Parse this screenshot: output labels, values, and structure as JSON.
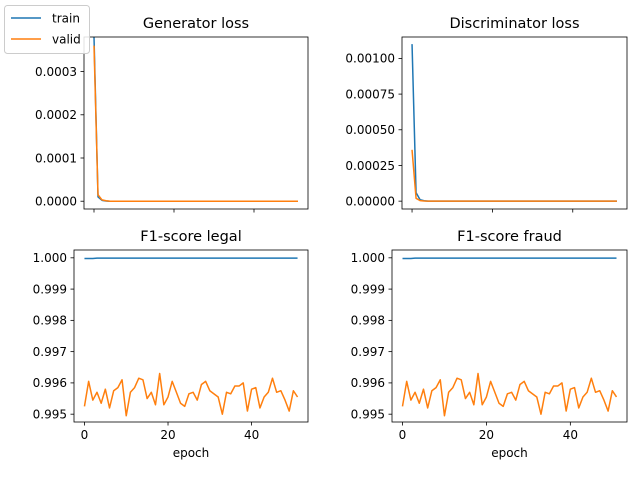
{
  "figure": {
    "legend": {
      "placement": "top-left",
      "entries": [
        {
          "label": "train",
          "color": "#1f77b4"
        },
        {
          "label": "valid",
          "color": "#ff7f0e"
        }
      ]
    }
  },
  "chart_data": [
    {
      "type": "line",
      "title": "Generator loss",
      "xlabel": "",
      "ylabel": "",
      "xlim": [
        -2.5,
        53.5
      ],
      "ylim": [
        -1.8e-05,
        0.00038
      ],
      "xticks": [
        0,
        20,
        40
      ],
      "show_x_tick_labels": false,
      "yticks": [
        0.0,
        0.0001,
        0.0002,
        0.0003
      ],
      "ytick_labels": [
        "0.0000",
        "0.0001",
        "0.0002",
        "0.0003"
      ],
      "grid": false,
      "series": [
        {
          "name": "train",
          "color": "#1f77b4",
          "x": [
            0,
            1,
            2,
            3,
            4,
            5,
            6,
            7,
            8,
            9,
            10,
            11,
            12,
            13,
            14,
            15,
            16,
            17,
            18,
            19,
            20,
            21,
            22,
            23,
            24,
            25,
            26,
            27,
            28,
            29,
            30,
            31,
            32,
            33,
            34,
            35,
            36,
            37,
            38,
            39,
            40,
            41,
            42,
            43,
            44,
            45,
            46,
            47,
            48,
            49,
            50,
            51
          ],
          "y": [
            0.00038,
            1e-05,
            2e-06,
            5e-07,
            0,
            0,
            0,
            0,
            0,
            0,
            0,
            0,
            0,
            0,
            0,
            0,
            0,
            0,
            0,
            0,
            0,
            0,
            0,
            0,
            0,
            0,
            0,
            0,
            0,
            0,
            0,
            0,
            0,
            0,
            0,
            0,
            0,
            0,
            0,
            0,
            0,
            0,
            0,
            0,
            0,
            0,
            0,
            0,
            0,
            0,
            0,
            0
          ]
        },
        {
          "name": "valid",
          "color": "#ff7f0e",
          "x": [
            0,
            1,
            2,
            3,
            4,
            5,
            6,
            7,
            8,
            9,
            10,
            11,
            12,
            13,
            14,
            15,
            16,
            17,
            18,
            19,
            20,
            21,
            22,
            23,
            24,
            25,
            26,
            27,
            28,
            29,
            30,
            31,
            32,
            33,
            34,
            35,
            36,
            37,
            38,
            39,
            40,
            41,
            42,
            43,
            44,
            45,
            46,
            47,
            48,
            49,
            50,
            51
          ],
          "y": [
            0.00036,
            1.5e-05,
            3e-06,
            1e-06,
            0,
            0,
            0,
            0,
            0,
            0,
            0,
            0,
            0,
            0,
            0,
            0,
            0,
            0,
            0,
            0,
            0,
            0,
            0,
            0,
            0,
            0,
            0,
            0,
            0,
            0,
            0,
            0,
            0,
            0,
            0,
            0,
            0,
            0,
            0,
            0,
            0,
            0,
            0,
            0,
            0,
            0,
            0,
            0,
            0,
            0,
            0,
            0
          ]
        }
      ]
    },
    {
      "type": "line",
      "title": "Discriminator loss",
      "xlabel": "",
      "ylabel": "",
      "xlim": [
        -2.5,
        53.5
      ],
      "ylim": [
        -5.5e-05,
        0.00115
      ],
      "xticks": [
        0,
        20,
        40
      ],
      "show_x_tick_labels": false,
      "yticks": [
        0.0,
        0.00025,
        0.0005,
        0.00075,
        0.001
      ],
      "ytick_labels": [
        "0.00000",
        "0.00025",
        "0.00050",
        "0.00075",
        "0.00100"
      ],
      "grid": false,
      "series": [
        {
          "name": "train",
          "color": "#1f77b4",
          "x": [
            0,
            1,
            2,
            3,
            4,
            5,
            6,
            7,
            8,
            9,
            10,
            11,
            12,
            13,
            14,
            15,
            16,
            17,
            18,
            19,
            20,
            21,
            22,
            23,
            24,
            25,
            26,
            27,
            28,
            29,
            30,
            31,
            32,
            33,
            34,
            35,
            36,
            37,
            38,
            39,
            40,
            41,
            42,
            43,
            44,
            45,
            46,
            47,
            48,
            49,
            50,
            51
          ],
          "y": [
            0.0011,
            6e-05,
            1e-05,
            3e-06,
            0,
            0,
            0,
            0,
            0,
            0,
            0,
            0,
            0,
            0,
            0,
            0,
            0,
            0,
            0,
            0,
            0,
            0,
            0,
            0,
            0,
            0,
            0,
            0,
            0,
            0,
            0,
            0,
            0,
            0,
            0,
            0,
            0,
            0,
            0,
            0,
            0,
            0,
            0,
            0,
            0,
            0,
            0,
            0,
            0,
            0,
            0,
            0
          ]
        },
        {
          "name": "valid",
          "color": "#ff7f0e",
          "x": [
            0,
            1,
            2,
            3,
            4,
            5,
            6,
            7,
            8,
            9,
            10,
            11,
            12,
            13,
            14,
            15,
            16,
            17,
            18,
            19,
            20,
            21,
            22,
            23,
            24,
            25,
            26,
            27,
            28,
            29,
            30,
            31,
            32,
            33,
            34,
            35,
            36,
            37,
            38,
            39,
            40,
            41,
            42,
            43,
            44,
            45,
            46,
            47,
            48,
            49,
            50,
            51
          ],
          "y": [
            0.00036,
            2e-05,
            4e-06,
            1e-06,
            0,
            0,
            0,
            0,
            0,
            0,
            0,
            0,
            0,
            0,
            0,
            0,
            0,
            0,
            0,
            0,
            0,
            0,
            0,
            0,
            0,
            0,
            0,
            0,
            0,
            0,
            0,
            0,
            0,
            0,
            0,
            0,
            0,
            0,
            0,
            0,
            0,
            0,
            0,
            0,
            0,
            0,
            0,
            0,
            0,
            0,
            0,
            0
          ]
        }
      ]
    },
    {
      "type": "line",
      "title": "F1-score legal",
      "xlabel": "epoch",
      "ylabel": "",
      "xlim": [
        -2.5,
        53.5
      ],
      "ylim": [
        0.99475,
        1.00025
      ],
      "xticks": [
        0,
        20,
        40
      ],
      "xtick_labels": [
        "0",
        "20",
        "40"
      ],
      "show_x_tick_labels": true,
      "yticks": [
        0.995,
        0.996,
        0.997,
        0.998,
        0.999,
        1.0
      ],
      "ytick_labels": [
        "0.995",
        "0.996",
        "0.997",
        "0.998",
        "0.999",
        "1.000"
      ],
      "grid": false,
      "series": [
        {
          "name": "train",
          "color": "#1f77b4",
          "x": [
            0,
            1,
            2,
            3,
            4,
            5,
            6,
            7,
            8,
            9,
            10,
            11,
            12,
            13,
            14,
            15,
            16,
            17,
            18,
            19,
            20,
            21,
            22,
            23,
            24,
            25,
            26,
            27,
            28,
            29,
            30,
            31,
            32,
            33,
            34,
            35,
            36,
            37,
            38,
            39,
            40,
            41,
            42,
            43,
            44,
            45,
            46,
            47,
            48,
            49,
            50,
            51
          ],
          "y": [
            0.99998,
            0.99998,
            0.99998,
            0.99999,
            0.99999,
            0.99999,
            0.99999,
            0.99999,
            0.99999,
            0.99999,
            0.99999,
            0.99999,
            0.99999,
            0.99999,
            0.99999,
            0.99999,
            0.99999,
            0.99999,
            0.99999,
            0.99999,
            0.99999,
            0.99999,
            0.99999,
            0.99999,
            0.99999,
            0.99999,
            0.99999,
            0.99999,
            0.99999,
            0.99999,
            0.99999,
            0.99999,
            0.99999,
            0.99999,
            0.99999,
            0.99999,
            0.99999,
            0.99999,
            0.99999,
            0.99999,
            0.99999,
            0.99999,
            0.99999,
            0.99999,
            0.99999,
            0.99999,
            0.99999,
            0.99999,
            0.99999,
            0.99999,
            0.99999,
            0.99999
          ]
        },
        {
          "name": "valid",
          "color": "#ff7f0e",
          "x": [
            0,
            1,
            2,
            3,
            4,
            5,
            6,
            7,
            8,
            9,
            10,
            11,
            12,
            13,
            14,
            15,
            16,
            17,
            18,
            19,
            20,
            21,
            22,
            23,
            24,
            25,
            26,
            27,
            28,
            29,
            30,
            31,
            32,
            33,
            34,
            35,
            36,
            37,
            38,
            39,
            40,
            41,
            42,
            43,
            44,
            45,
            46,
            47,
            48,
            49,
            50,
            51
          ],
          "y": [
            0.99525,
            0.99605,
            0.99545,
            0.9957,
            0.99535,
            0.9958,
            0.9952,
            0.99575,
            0.99585,
            0.9961,
            0.99495,
            0.9957,
            0.99585,
            0.99615,
            0.9961,
            0.9955,
            0.9957,
            0.9953,
            0.9963,
            0.9953,
            0.99555,
            0.99605,
            0.9957,
            0.99535,
            0.99525,
            0.99565,
            0.9957,
            0.99545,
            0.99595,
            0.99605,
            0.99575,
            0.99565,
            0.99555,
            0.995,
            0.9957,
            0.99565,
            0.9959,
            0.9959,
            0.996,
            0.9951,
            0.9958,
            0.99585,
            0.9952,
            0.99555,
            0.9957,
            0.99615,
            0.9957,
            0.99575,
            0.99545,
            0.9951,
            0.99575,
            0.99555
          ]
        }
      ]
    },
    {
      "type": "line",
      "title": "F1-score fraud",
      "xlabel": "epoch",
      "ylabel": "",
      "xlim": [
        -2.5,
        53.5
      ],
      "ylim": [
        0.99475,
        1.00025
      ],
      "xticks": [
        0,
        20,
        40
      ],
      "xtick_labels": [
        "0",
        "20",
        "40"
      ],
      "show_x_tick_labels": true,
      "yticks": [
        0.995,
        0.996,
        0.997,
        0.998,
        0.999,
        1.0
      ],
      "ytick_labels": [
        "0.995",
        "0.996",
        "0.997",
        "0.998",
        "0.999",
        "1.000"
      ],
      "grid": false,
      "series": [
        {
          "name": "train",
          "color": "#1f77b4",
          "x": [
            0,
            1,
            2,
            3,
            4,
            5,
            6,
            7,
            8,
            9,
            10,
            11,
            12,
            13,
            14,
            15,
            16,
            17,
            18,
            19,
            20,
            21,
            22,
            23,
            24,
            25,
            26,
            27,
            28,
            29,
            30,
            31,
            32,
            33,
            34,
            35,
            36,
            37,
            38,
            39,
            40,
            41,
            42,
            43,
            44,
            45,
            46,
            47,
            48,
            49,
            50,
            51
          ],
          "y": [
            0.99998,
            0.99998,
            0.99998,
            0.99999,
            0.99999,
            0.99999,
            0.99999,
            0.99999,
            0.99999,
            0.99999,
            0.99999,
            0.99999,
            0.99999,
            0.99999,
            0.99999,
            0.99999,
            0.99999,
            0.99999,
            0.99999,
            0.99999,
            0.99999,
            0.99999,
            0.99999,
            0.99999,
            0.99999,
            0.99999,
            0.99999,
            0.99999,
            0.99999,
            0.99999,
            0.99999,
            0.99999,
            0.99999,
            0.99999,
            0.99999,
            0.99999,
            0.99999,
            0.99999,
            0.99999,
            0.99999,
            0.99999,
            0.99999,
            0.99999,
            0.99999,
            0.99999,
            0.99999,
            0.99999,
            0.99999,
            0.99999,
            0.99999,
            0.99999,
            0.99999
          ]
        },
        {
          "name": "valid",
          "color": "#ff7f0e",
          "x": [
            0,
            1,
            2,
            3,
            4,
            5,
            6,
            7,
            8,
            9,
            10,
            11,
            12,
            13,
            14,
            15,
            16,
            17,
            18,
            19,
            20,
            21,
            22,
            23,
            24,
            25,
            26,
            27,
            28,
            29,
            30,
            31,
            32,
            33,
            34,
            35,
            36,
            37,
            38,
            39,
            40,
            41,
            42,
            43,
            44,
            45,
            46,
            47,
            48,
            49,
            50,
            51
          ],
          "y": [
            0.99525,
            0.99605,
            0.99545,
            0.9957,
            0.99535,
            0.9958,
            0.9952,
            0.99575,
            0.99585,
            0.9961,
            0.99495,
            0.9957,
            0.99585,
            0.99615,
            0.9961,
            0.9955,
            0.9957,
            0.9953,
            0.9963,
            0.9953,
            0.99555,
            0.99605,
            0.9957,
            0.99535,
            0.99525,
            0.99565,
            0.9957,
            0.99545,
            0.99595,
            0.99605,
            0.99575,
            0.99565,
            0.99555,
            0.995,
            0.9957,
            0.99565,
            0.9959,
            0.9959,
            0.996,
            0.9951,
            0.9958,
            0.99585,
            0.9952,
            0.99555,
            0.9957,
            0.99615,
            0.9957,
            0.99575,
            0.99545,
            0.9951,
            0.99575,
            0.99555
          ]
        }
      ]
    }
  ]
}
